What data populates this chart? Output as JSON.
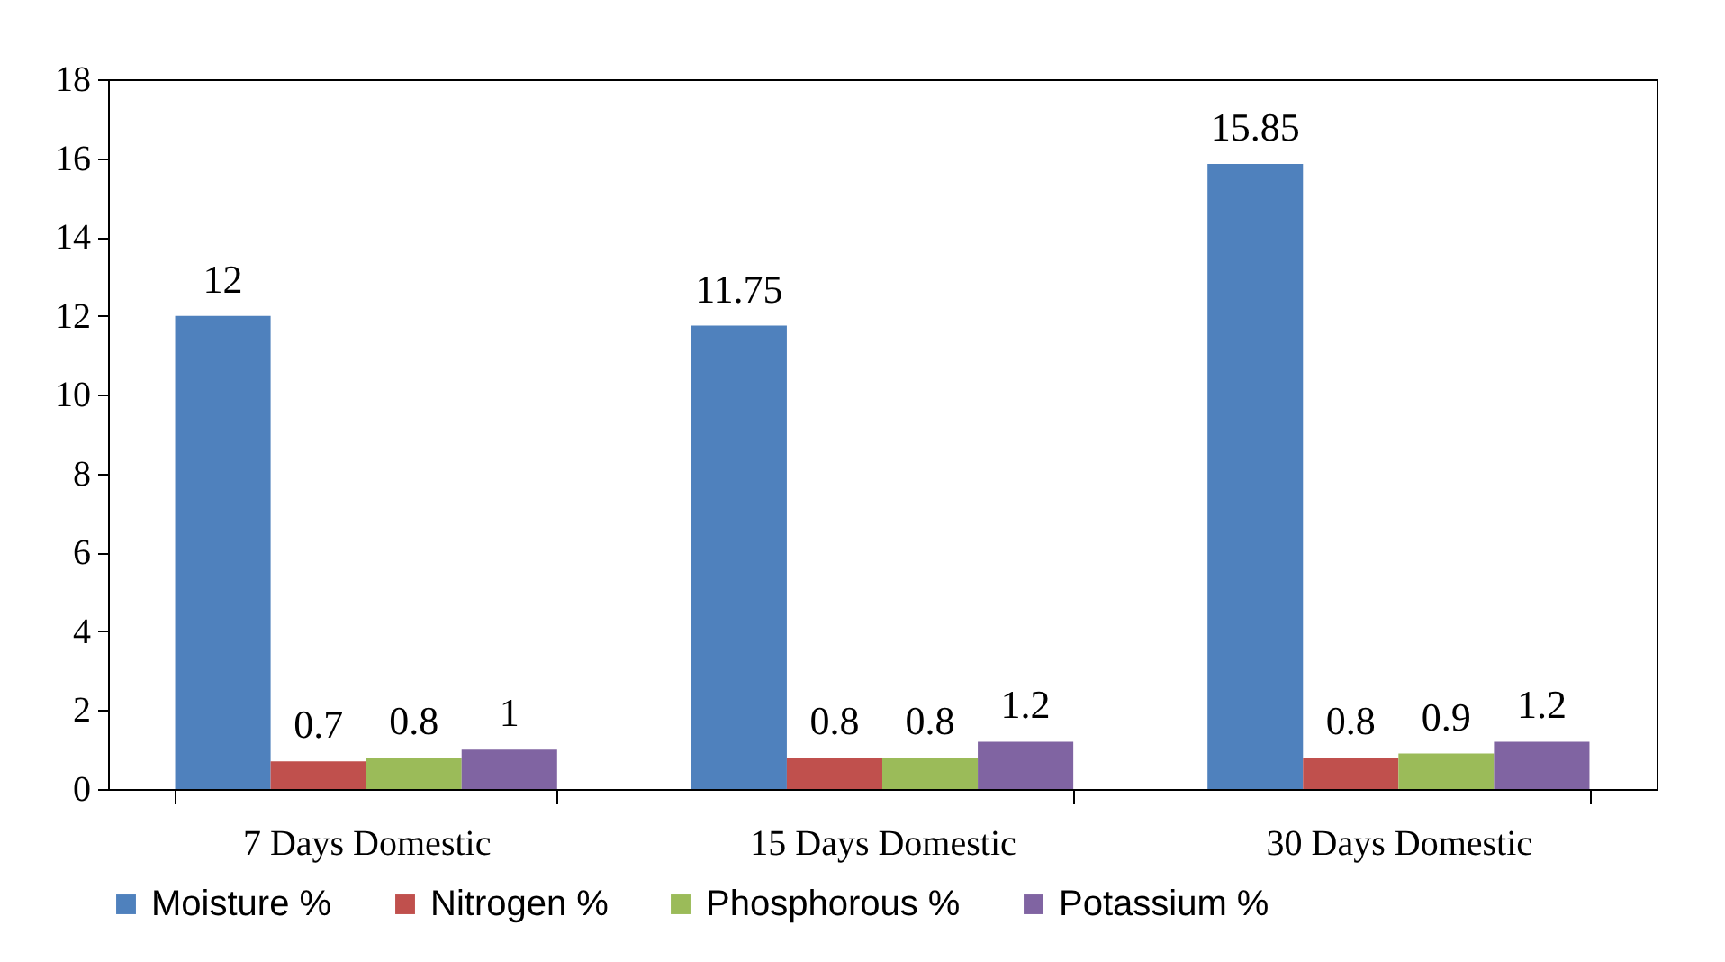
{
  "chart_data": {
    "type": "bar",
    "categories": [
      "7 Days Domestic",
      "15 Days Domestic",
      "30 Days Domestic"
    ],
    "series": [
      {
        "name": "Moisture %",
        "color": "#4f81bd",
        "values": [
          12,
          11.75,
          15.85
        ]
      },
      {
        "name": "Nitrogen %",
        "color": "#c0504d",
        "values": [
          0.7,
          0.8,
          0.8
        ]
      },
      {
        "name": "Phosphorous %",
        "color": "#9bbb59",
        "values": [
          0.8,
          0.8,
          0.9
        ]
      },
      {
        "name": "Potassium %",
        "color": "#8064a2",
        "values": [
          1,
          1.2,
          1.2
        ]
      }
    ],
    "ylim": [
      0,
      18
    ],
    "yticks": [
      0,
      2,
      4,
      6,
      8,
      10,
      12,
      14,
      16,
      18
    ],
    "grid": false,
    "legend": "bottom",
    "data_labels": true
  }
}
